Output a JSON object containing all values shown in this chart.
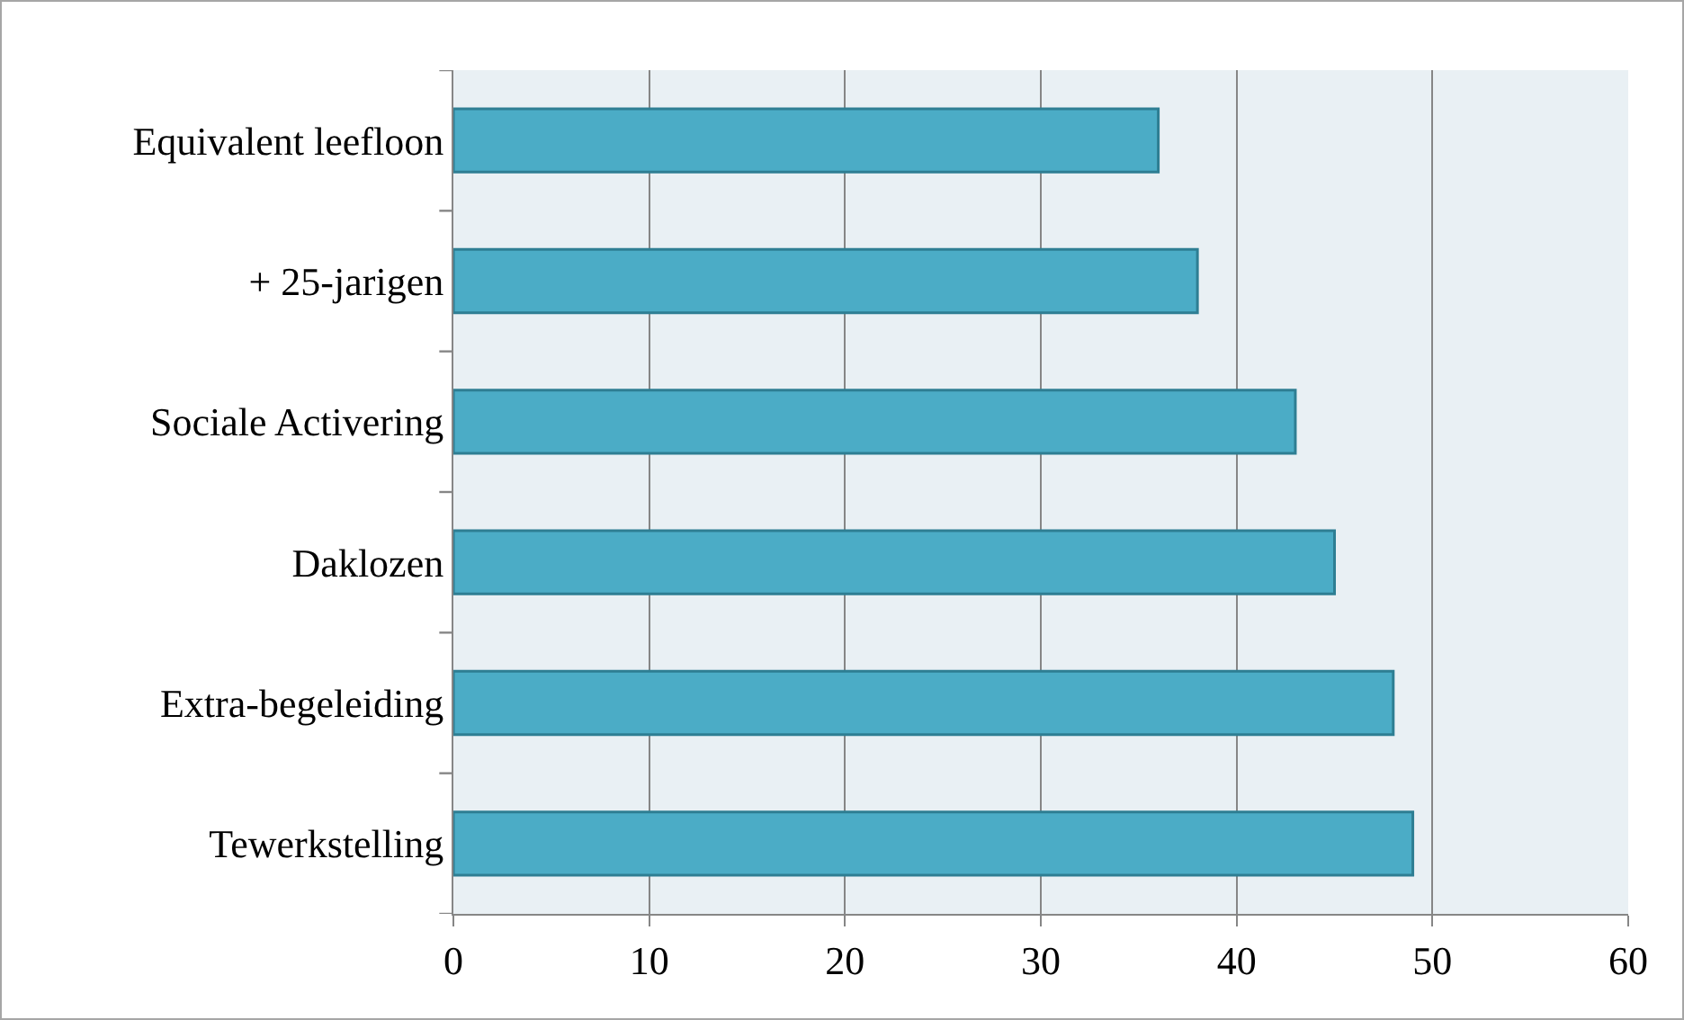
{
  "chart_data": {
    "type": "bar",
    "orientation": "horizontal",
    "categories": [
      "Equivalent leefloon",
      "+ 25-jarigen",
      "Sociale Activering",
      "Daklozen",
      "Extra-begeleiding",
      "Tewerkstelling"
    ],
    "values": [
      36,
      38,
      43,
      45,
      48,
      49
    ],
    "color": "#4bacc6",
    "xlim": [
      0,
      60
    ],
    "xticks": [
      0,
      10,
      20,
      30,
      40,
      50,
      60
    ],
    "grid": "x",
    "legend": false
  }
}
